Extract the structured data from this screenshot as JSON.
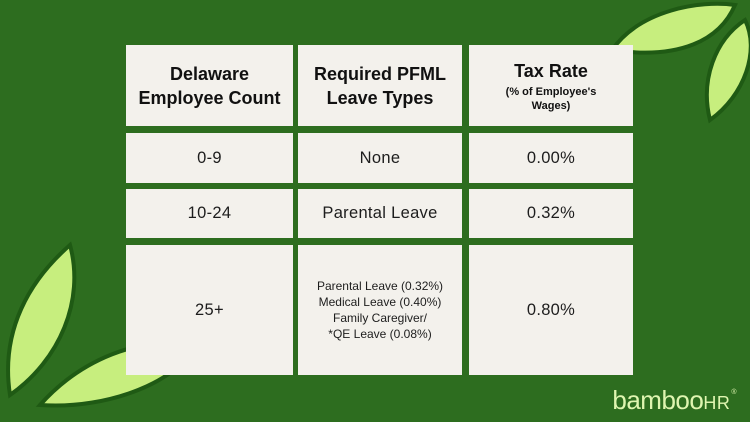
{
  "table": {
    "headers": {
      "col1_line1": "Delaware",
      "col1_line2": "Employee Count",
      "col2_line1": "Required PFML",
      "col2_line2": "Leave Types",
      "col3_title": "Tax Rate",
      "col3_sub_line1": "(% of Employee's",
      "col3_sub_line2": "Wages)"
    },
    "rows": [
      {
        "count": "0-9",
        "leave": "None",
        "rate": "0.00%"
      },
      {
        "count": "10-24",
        "leave": "Parental Leave",
        "rate": "0.32%"
      },
      {
        "count": "25+",
        "leave_lines": [
          "Parental Leave (0.32%)",
          "Medical Leave (0.40%)",
          "Family Caregiver/",
          "*QE Leave (0.08%)"
        ],
        "rate": "0.80%"
      }
    ]
  },
  "logo": {
    "main": "bamboo",
    "suffix": "HR",
    "reg": "®"
  },
  "colors": {
    "background": "#2d6d1f",
    "cell": "#f3f1ec",
    "leaf": "#c7ee7e",
    "leaf_outline": "#1f5a14",
    "logo": "#dff5b0"
  }
}
